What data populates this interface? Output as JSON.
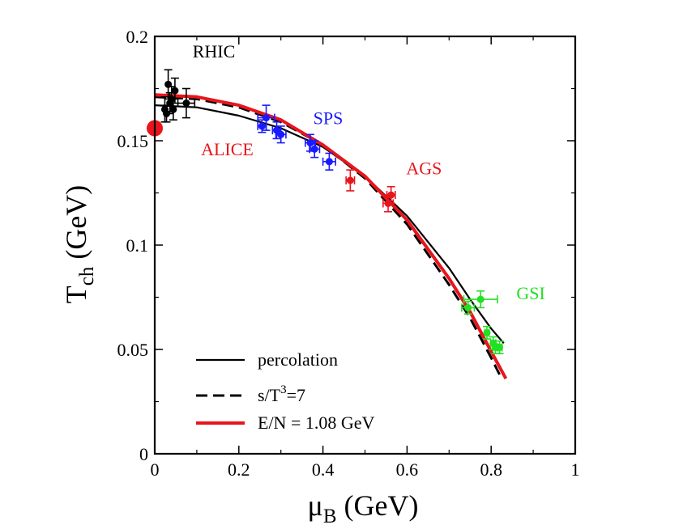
{
  "chart_data": {
    "type": "scatter",
    "xlabel": {
      "main": "μ",
      "sub": "B",
      "rest": " (GeV)"
    },
    "ylabel": {
      "main": "T",
      "sub": "ch",
      "rest": " (GeV)"
    },
    "xlim": [
      0,
      1
    ],
    "ylim": [
      0,
      0.2
    ],
    "x_ticks": [
      {
        "value": 0,
        "label": "0"
      },
      {
        "value": 0.2,
        "label": "0.2"
      },
      {
        "value": 0.4,
        "label": "0.4"
      },
      {
        "value": 0.6,
        "label": "0.6"
      },
      {
        "value": 0.8,
        "label": "0.8"
      },
      {
        "value": 1,
        "label": "1"
      }
    ],
    "y_ticks": [
      {
        "value": 0,
        "label": "0"
      },
      {
        "value": 0.05,
        "label": "0.05"
      },
      {
        "value": 0.1,
        "label": "0.1"
      },
      {
        "value": 0.15,
        "label": "0.15"
      },
      {
        "value": 0.2,
        "label": "0.2"
      }
    ],
    "grid": false,
    "legend_position": "bottom-left",
    "curves": [
      {
        "name": "percolation",
        "style": "solid",
        "color": "#000000",
        "x": [
          0,
          0.1,
          0.2,
          0.3,
          0.4,
          0.5,
          0.6,
          0.7,
          0.75,
          0.8,
          0.83
        ],
        "y": [
          0.167,
          0.166,
          0.162,
          0.156,
          0.147,
          0.133,
          0.114,
          0.089,
          0.074,
          0.06,
          0.053
        ]
      },
      {
        "name": "s/T",
        "name_sup": "3",
        "name_rest": "=7",
        "style": "dashed",
        "color": "#000000",
        "x": [
          0,
          0.1,
          0.2,
          0.3,
          0.4,
          0.5,
          0.6,
          0.7,
          0.75,
          0.8,
          0.82
        ],
        "y": [
          0.171,
          0.17,
          0.166,
          0.159,
          0.148,
          0.132,
          0.11,
          0.081,
          0.065,
          0.046,
          0.038
        ]
      },
      {
        "name": "E/N = 1.08 GeV",
        "style": "solid",
        "color": "#e8151b",
        "x": [
          0,
          0.1,
          0.2,
          0.3,
          0.4,
          0.5,
          0.6,
          0.7,
          0.75,
          0.8,
          0.835
        ],
        "y": [
          0.172,
          0.171,
          0.167,
          0.16,
          0.148,
          0.133,
          0.112,
          0.084,
          0.068,
          0.049,
          0.036
        ]
      }
    ],
    "groups": [
      {
        "label": "RHIC",
        "color": "#000000",
        "label_x": 0.09,
        "label_y": 0.19,
        "points": [
          {
            "x": 0.024,
            "y": 0.165,
            "yerr": 0.006,
            "xerr": 0
          },
          {
            "x": 0.028,
            "y": 0.163,
            "yerr": 0.004,
            "xerr": 0
          },
          {
            "x": 0.032,
            "y": 0.177,
            "yerr": 0.007,
            "xerr": 0
          },
          {
            "x": 0.036,
            "y": 0.168,
            "yerr": 0.005,
            "xerr": 0
          },
          {
            "x": 0.04,
            "y": 0.17,
            "yerr": 0.006,
            "xerr": 0
          },
          {
            "x": 0.044,
            "y": 0.165,
            "yerr": 0.005,
            "xerr": 0
          },
          {
            "x": 0.048,
            "y": 0.174,
            "yerr": 0.006,
            "xerr": 0
          },
          {
            "x": 0.075,
            "y": 0.168,
            "yerr": 0.007,
            "xerr": 0.02
          }
        ]
      },
      {
        "label": "SPS",
        "color": "#1a1aff",
        "label_x": 0.377,
        "label_y": 0.158,
        "points": [
          {
            "x": 0.255,
            "y": 0.157,
            "yerr": 0.003,
            "xerr": 0.01
          },
          {
            "x": 0.265,
            "y": 0.161,
            "yerr": 0.006,
            "xerr": 0.02
          },
          {
            "x": 0.29,
            "y": 0.155,
            "yerr": 0.004,
            "xerr": 0.01
          },
          {
            "x": 0.3,
            "y": 0.153,
            "yerr": 0.004,
            "xerr": 0.012
          },
          {
            "x": 0.37,
            "y": 0.149,
            "yerr": 0.004,
            "xerr": 0.012
          },
          {
            "x": 0.38,
            "y": 0.146,
            "yerr": 0.004,
            "xerr": 0.012
          },
          {
            "x": 0.415,
            "y": 0.14,
            "yerr": 0.004,
            "xerr": 0.015
          }
        ]
      },
      {
        "label": "AGS",
        "color": "#e8151b",
        "label_x": 0.598,
        "label_y": 0.134,
        "points": [
          {
            "x": 0.465,
            "y": 0.131,
            "yerr": 0.005,
            "xerr": 0.01
          },
          {
            "x": 0.555,
            "y": 0.12,
            "yerr": 0.004,
            "xerr": 0.012
          },
          {
            "x": 0.562,
            "y": 0.124,
            "yerr": 0.004,
            "xerr": 0.01
          }
        ]
      },
      {
        "label": "GSI",
        "color": "#22e022",
        "label_x": 0.86,
        "label_y": 0.074,
        "points": [
          {
            "x": 0.745,
            "y": 0.07,
            "yerr": 0.003,
            "xerr": 0.015
          },
          {
            "x": 0.775,
            "y": 0.074,
            "yerr": 0.004,
            "xerr": 0.04
          },
          {
            "x": 0.79,
            "y": 0.058,
            "yerr": 0.003,
            "xerr": 0.005
          },
          {
            "x": 0.805,
            "y": 0.053,
            "yerr": 0.003,
            "xerr": 0.006
          },
          {
            "x": 0.81,
            "y": 0.051,
            "yerr": 0.003,
            "xerr": 0.006
          },
          {
            "x": 0.82,
            "y": 0.051,
            "yerr": 0.003,
            "xerr": 0.006
          }
        ]
      },
      {
        "label": "ALICE",
        "color": "#e8151b",
        "label_x": 0.11,
        "label_y": 0.143,
        "big": true,
        "points": [
          {
            "x": 0.0,
            "y": 0.156,
            "yerr": 0,
            "xerr": 0
          }
        ]
      }
    ]
  }
}
